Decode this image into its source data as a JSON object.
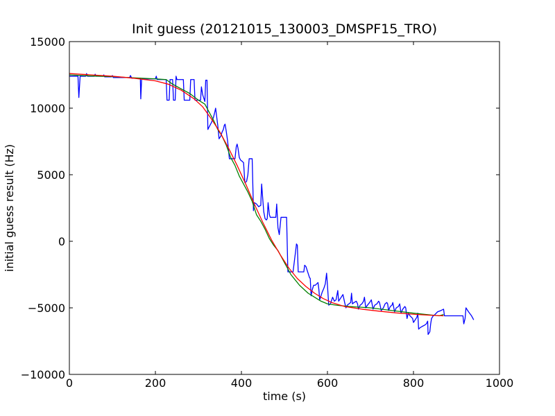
{
  "chart_data": {
    "type": "line",
    "title": "Init guess (20121015_130003_DMSPF15_TRO)",
    "xlabel": "time (s)",
    "ylabel": "initial guess result (Hz)",
    "xlim": [
      0,
      1000
    ],
    "ylim": [
      -10000,
      15000
    ],
    "xticks": [
      0,
      200,
      400,
      600,
      800,
      1000
    ],
    "yticks": [
      -10000,
      -5000,
      0,
      5000,
      10000,
      15000
    ],
    "xtick_labels": [
      "0",
      "200",
      "400",
      "600",
      "800",
      "1000"
    ],
    "ytick_labels": [
      "−10000",
      "−5000",
      "0",
      "5000",
      "10000",
      "15000"
    ],
    "grid": false,
    "series": [
      {
        "color": "#0000ff",
        "style": "raw",
        "points": [
          [
            0,
            12400
          ],
          [
            10,
            12400
          ],
          [
            20,
            12400
          ],
          [
            22,
            10800
          ],
          [
            25,
            12400
          ],
          [
            30,
            12400
          ],
          [
            38,
            12400
          ],
          [
            40,
            12600
          ],
          [
            42,
            12400
          ],
          [
            50,
            12400
          ],
          [
            58,
            12400
          ],
          [
            60,
            12550
          ],
          [
            62,
            12400
          ],
          [
            70,
            12400
          ],
          [
            78,
            12400
          ],
          [
            80,
            12500
          ],
          [
            82,
            12350
          ],
          [
            90,
            12350
          ],
          [
            98,
            12350
          ],
          [
            100,
            12450
          ],
          [
            102,
            12300
          ],
          [
            110,
            12300
          ],
          [
            120,
            12300
          ],
          [
            130,
            12300
          ],
          [
            140,
            12300
          ],
          [
            142,
            12450
          ],
          [
            145,
            12250
          ],
          [
            150,
            12250
          ],
          [
            160,
            12250
          ],
          [
            165,
            12250
          ],
          [
            166,
            10700
          ],
          [
            168,
            12200
          ],
          [
            180,
            12200
          ],
          [
            190,
            12200
          ],
          [
            200,
            12200
          ],
          [
            202,
            12400
          ],
          [
            204,
            12150
          ],
          [
            215,
            12150
          ],
          [
            225,
            12150
          ],
          [
            227,
            10600
          ],
          [
            232,
            10600
          ],
          [
            234,
            12150
          ],
          [
            240,
            12150
          ],
          [
            242,
            10600
          ],
          [
            246,
            10600
          ],
          [
            248,
            12400
          ],
          [
            250,
            12150
          ],
          [
            255,
            12150
          ],
          [
            265,
            12150
          ],
          [
            267,
            10600
          ],
          [
            275,
            10600
          ],
          [
            280,
            10600
          ],
          [
            282,
            12150
          ],
          [
            287,
            12150
          ],
          [
            290,
            12150
          ],
          [
            292,
            10600
          ],
          [
            300,
            10600
          ],
          [
            305,
            10600
          ],
          [
            307,
            11600
          ],
          [
            310,
            11000
          ],
          [
            315,
            10500
          ],
          [
            317,
            12100
          ],
          [
            320,
            12100
          ],
          [
            322,
            8400
          ],
          [
            325,
            8600
          ],
          [
            330,
            8900
          ],
          [
            335,
            9300
          ],
          [
            338,
            9700
          ],
          [
            340,
            10000
          ],
          [
            345,
            8700
          ],
          [
            348,
            7700
          ],
          [
            352,
            7900
          ],
          [
            355,
            8200
          ],
          [
            358,
            8400
          ],
          [
            360,
            8700
          ],
          [
            362,
            8800
          ],
          [
            365,
            8200
          ],
          [
            368,
            7500
          ],
          [
            372,
            6200
          ],
          [
            378,
            6200
          ],
          [
            385,
            6200
          ],
          [
            388,
            7100
          ],
          [
            390,
            7300
          ],
          [
            392,
            7000
          ],
          [
            395,
            6300
          ],
          [
            398,
            6100
          ],
          [
            402,
            6000
          ],
          [
            405,
            5900
          ],
          [
            408,
            4400
          ],
          [
            412,
            4500
          ],
          [
            415,
            5000
          ],
          [
            418,
            6200
          ],
          [
            425,
            6200
          ],
          [
            428,
            2300
          ],
          [
            430,
            2900
          ],
          [
            435,
            2800
          ],
          [
            440,
            2600
          ],
          [
            445,
            2700
          ],
          [
            447,
            4300
          ],
          [
            450,
            3000
          ],
          [
            452,
            2200
          ],
          [
            455,
            1700
          ],
          [
            458,
            1600
          ],
          [
            460,
            1700
          ],
          [
            462,
            2900
          ],
          [
            465,
            2000
          ],
          [
            467,
            1800
          ],
          [
            470,
            1800
          ],
          [
            475,
            1800
          ],
          [
            480,
            1800
          ],
          [
            482,
            2800
          ],
          [
            485,
            1000
          ],
          [
            488,
            500
          ],
          [
            492,
            1800
          ],
          [
            498,
            1800
          ],
          [
            502,
            1800
          ],
          [
            505,
            1800
          ],
          [
            508,
            -2300
          ],
          [
            515,
            -2300
          ],
          [
            520,
            -2300
          ],
          [
            525,
            -1000
          ],
          [
            528,
            -200
          ],
          [
            530,
            -300
          ],
          [
            532,
            -2300
          ],
          [
            538,
            -2300
          ],
          [
            545,
            -2300
          ],
          [
            547,
            -1800
          ],
          [
            550,
            -1900
          ],
          [
            555,
            -2400
          ],
          [
            558,
            -2700
          ],
          [
            560,
            -2800
          ],
          [
            562,
            -4100
          ],
          [
            565,
            -3600
          ],
          [
            568,
            -3300
          ],
          [
            572,
            -3300
          ],
          [
            575,
            -3200
          ],
          [
            578,
            -3100
          ],
          [
            580,
            -3600
          ],
          [
            582,
            -4400
          ],
          [
            585,
            -4100
          ],
          [
            588,
            -3800
          ],
          [
            592,
            -3500
          ],
          [
            595,
            -3200
          ],
          [
            598,
            -2400
          ],
          [
            600,
            -3300
          ],
          [
            603,
            -4800
          ],
          [
            607,
            -4700
          ],
          [
            612,
            -4200
          ],
          [
            616,
            -4500
          ],
          [
            620,
            -4400
          ],
          [
            624,
            -3700
          ],
          [
            626,
            -4500
          ],
          [
            630,
            -4300
          ],
          [
            634,
            -4100
          ],
          [
            636,
            -4000
          ],
          [
            640,
            -4600
          ],
          [
            643,
            -5000
          ],
          [
            646,
            -4800
          ],
          [
            650,
            -4700
          ],
          [
            654,
            -4600
          ],
          [
            656,
            -3900
          ],
          [
            658,
            -4700
          ],
          [
            662,
            -4600
          ],
          [
            667,
            -4500
          ],
          [
            670,
            -4700
          ],
          [
            672,
            -5100
          ],
          [
            676,
            -4800
          ],
          [
            680,
            -4700
          ],
          [
            684,
            -4500
          ],
          [
            686,
            -4200
          ],
          [
            689,
            -5000
          ],
          [
            693,
            -4800
          ],
          [
            698,
            -4600
          ],
          [
            702,
            -4400
          ],
          [
            706,
            -5100
          ],
          [
            710,
            -4800
          ],
          [
            715,
            -4700
          ],
          [
            719,
            -4500
          ],
          [
            721,
            -4600
          ],
          [
            725,
            -5200
          ],
          [
            730,
            -5000
          ],
          [
            734,
            -4700
          ],
          [
            738,
            -4600
          ],
          [
            740,
            -4700
          ],
          [
            742,
            -5200
          ],
          [
            746,
            -4900
          ],
          [
            750,
            -4800
          ],
          [
            752,
            -4600
          ],
          [
            756,
            -5300
          ],
          [
            760,
            -5000
          ],
          [
            765,
            -4900
          ],
          [
            768,
            -4700
          ],
          [
            771,
            -5400
          ],
          [
            775,
            -5100
          ],
          [
            780,
            -4900
          ],
          [
            782,
            -5000
          ],
          [
            785,
            -5800
          ],
          [
            788,
            -5400
          ],
          [
            792,
            -5600
          ],
          [
            795,
            -5700
          ],
          [
            798,
            -5800
          ],
          [
            800,
            -6100
          ],
          [
            804,
            -5900
          ],
          [
            808,
            -5700
          ],
          [
            810,
            -5400
          ],
          [
            812,
            -6600
          ],
          [
            815,
            -6500
          ],
          [
            820,
            -6400
          ],
          [
            826,
            -6300
          ],
          [
            830,
            -6200
          ],
          [
            833,
            -6000
          ],
          [
            834,
            -7000
          ],
          [
            838,
            -6800
          ],
          [
            840,
            -6200
          ],
          [
            842,
            -5800
          ],
          [
            846,
            -5600
          ],
          [
            850,
            -5500
          ],
          [
            856,
            -5300
          ],
          [
            864,
            -5200
          ],
          [
            870,
            -5100
          ],
          [
            872,
            -5600
          ],
          [
            880,
            -5600
          ],
          [
            890,
            -5600
          ],
          [
            900,
            -5600
          ],
          [
            910,
            -5600
          ],
          [
            915,
            -5600
          ],
          [
            917,
            -6200
          ],
          [
            920,
            -5800
          ],
          [
            922,
            -5000
          ],
          [
            928,
            -5300
          ],
          [
            935,
            -5600
          ],
          [
            940,
            -5900
          ]
        ]
      },
      {
        "color": "#008000",
        "style": "smoothed",
        "points": [
          [
            0,
            12500
          ],
          [
            50,
            12420
          ],
          [
            100,
            12370
          ],
          [
            150,
            12280
          ],
          [
            200,
            12200
          ],
          [
            225,
            12150
          ],
          [
            240,
            11800
          ],
          [
            260,
            11450
          ],
          [
            280,
            11100
          ],
          [
            300,
            10600
          ],
          [
            315,
            10300
          ],
          [
            325,
            9700
          ],
          [
            335,
            9100
          ],
          [
            345,
            8400
          ],
          [
            355,
            7900
          ],
          [
            365,
            7200
          ],
          [
            375,
            6300
          ],
          [
            385,
            5700
          ],
          [
            395,
            4900
          ],
          [
            405,
            4300
          ],
          [
            415,
            3700
          ],
          [
            425,
            3000
          ],
          [
            435,
            2000
          ],
          [
            445,
            1500
          ],
          [
            455,
            900
          ],
          [
            465,
            200
          ],
          [
            475,
            -300
          ],
          [
            485,
            -700
          ],
          [
            495,
            -1300
          ],
          [
            505,
            -1900
          ],
          [
            515,
            -2500
          ],
          [
            525,
            -2900
          ],
          [
            535,
            -3300
          ],
          [
            545,
            -3600
          ],
          [
            555,
            -3900
          ],
          [
            565,
            -4100
          ],
          [
            575,
            -4300
          ],
          [
            585,
            -4500
          ],
          [
            600,
            -4700
          ],
          [
            620,
            -4800
          ],
          [
            650,
            -4900
          ],
          [
            700,
            -5000
          ],
          [
            750,
            -5200
          ],
          [
            800,
            -5400
          ],
          [
            830,
            -5500
          ],
          [
            860,
            -5600
          ],
          [
            870,
            -5500
          ]
        ]
      },
      {
        "color": "#ff0000",
        "style": "fit",
        "points": [
          [
            0,
            12600
          ],
          [
            50,
            12500
          ],
          [
            100,
            12400
          ],
          [
            150,
            12250
          ],
          [
            200,
            12050
          ],
          [
            230,
            11800
          ],
          [
            260,
            11350
          ],
          [
            290,
            10700
          ],
          [
            310,
            10100
          ],
          [
            330,
            9200
          ],
          [
            350,
            8200
          ],
          [
            370,
            7000
          ],
          [
            390,
            5700
          ],
          [
            410,
            4300
          ],
          [
            430,
            2800
          ],
          [
            450,
            1400
          ],
          [
            470,
            100
          ],
          [
            490,
            -1000
          ],
          [
            510,
            -2000
          ],
          [
            530,
            -2800
          ],
          [
            550,
            -3400
          ],
          [
            570,
            -3900
          ],
          [
            590,
            -4300
          ],
          [
            610,
            -4600
          ],
          [
            640,
            -4900
          ],
          [
            680,
            -5100
          ],
          [
            720,
            -5250
          ],
          [
            760,
            -5380
          ],
          [
            800,
            -5480
          ],
          [
            840,
            -5560
          ],
          [
            870,
            -5600
          ]
        ]
      }
    ]
  }
}
